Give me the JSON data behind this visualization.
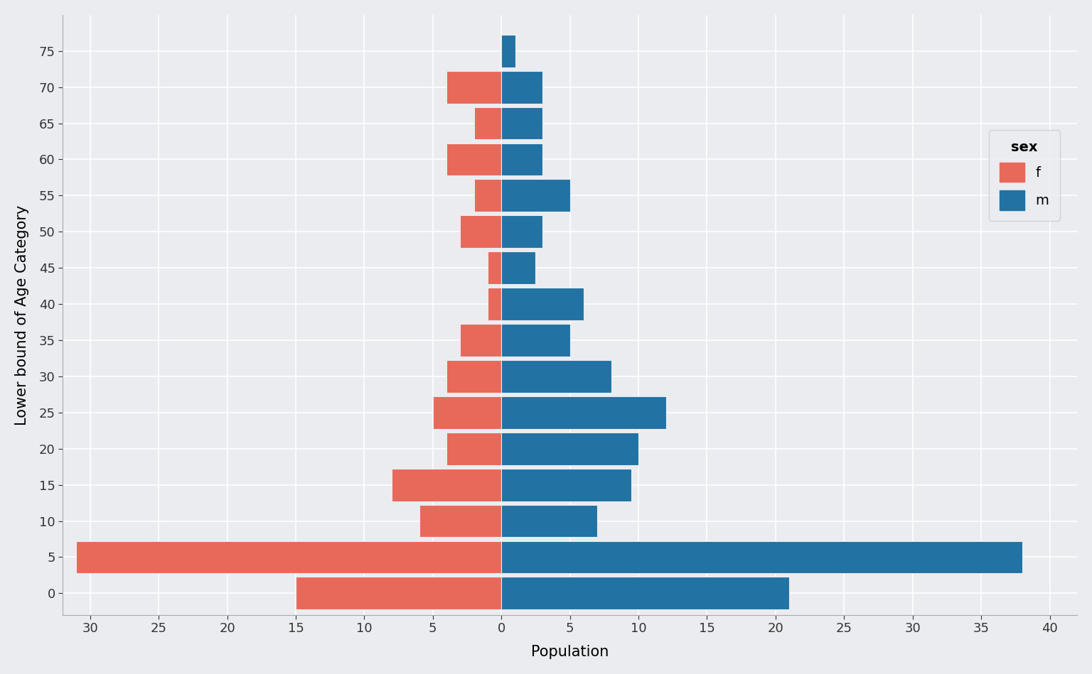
{
  "age_categories": [
    0,
    5,
    10,
    15,
    20,
    25,
    30,
    35,
    40,
    45,
    50,
    55,
    60,
    65,
    70,
    75
  ],
  "female_values": [
    15,
    31,
    6,
    8,
    4,
    5,
    4,
    3,
    1,
    1,
    3,
    2,
    4,
    2,
    4,
    0
  ],
  "male_values": [
    21,
    38,
    7,
    9.5,
    10,
    12,
    8,
    5,
    6,
    2.5,
    3,
    5,
    3,
    3,
    3,
    1
  ],
  "female_color": "#E8685A",
  "male_color": "#2272A3",
  "background_color": "#EAECF0",
  "grid_color": "#FFFFFF",
  "xlabel": "Population",
  "ylabel": "Lower bound of Age Category",
  "xlim": [
    -32,
    42
  ],
  "xticks": [
    -30,
    -25,
    -20,
    -15,
    -10,
    -5,
    0,
    5,
    10,
    15,
    20,
    25,
    30,
    35,
    40
  ],
  "xticklabels": [
    "30",
    "25",
    "20",
    "15",
    "10",
    "5",
    "0",
    "5",
    "10",
    "15",
    "20",
    "25",
    "30",
    "35",
    "40"
  ],
  "yticks": [
    0,
    5,
    10,
    15,
    20,
    25,
    30,
    35,
    40,
    45,
    50,
    55,
    60,
    65,
    70,
    75
  ],
  "bar_height": 4.5,
  "legend_title": "sex",
  "legend_labels": [
    "f",
    "m"
  ],
  "legend_colors": [
    "#E8685A",
    "#2272A3"
  ],
  "figsize": [
    15.36,
    9.49
  ],
  "dpi": 100,
  "ylim": [
    -3,
    80
  ],
  "tick_fontsize": 13,
  "label_fontsize": 15
}
